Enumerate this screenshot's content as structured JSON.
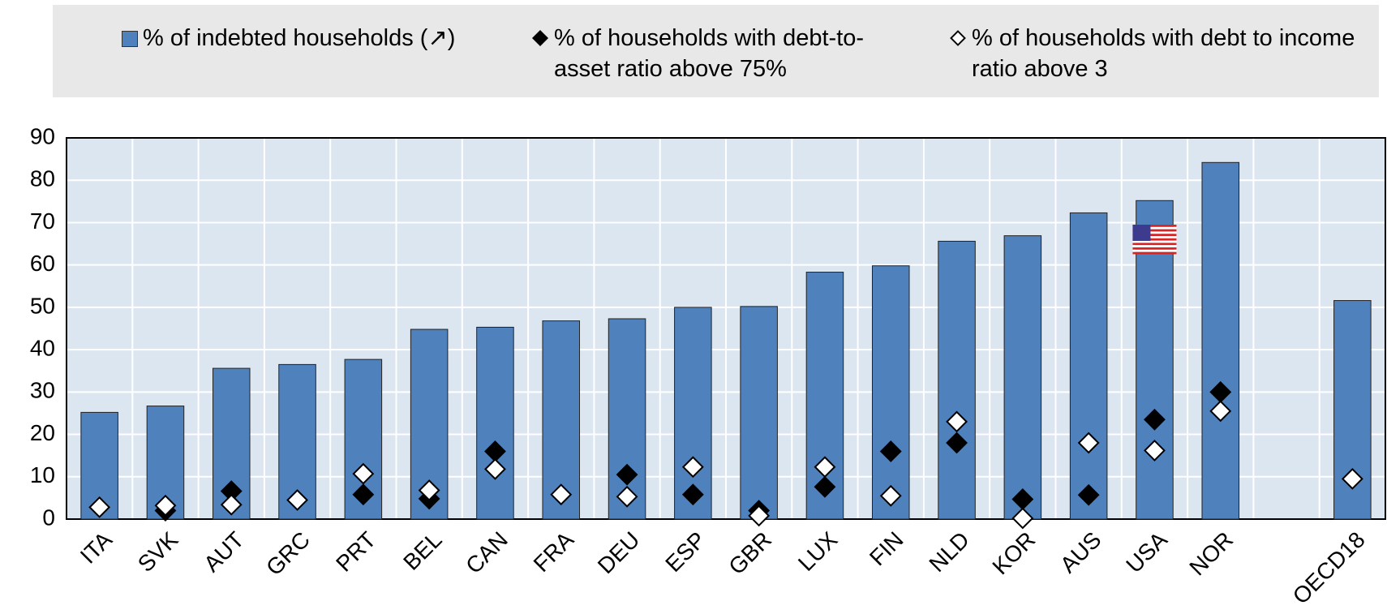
{
  "chart_data": {
    "type": "bar",
    "categories": [
      "ITA",
      "SVK",
      "AUT",
      "GRC",
      "PRT",
      "BEL",
      "CAN",
      "FRA",
      "DEU",
      "ESP",
      "GBR",
      "LUX",
      "FIN",
      "NLD",
      "KOR",
      "AUS",
      "USA",
      "NOR",
      null,
      "OECD18"
    ],
    "series": [
      {
        "name": "% of indebted households (↗)",
        "style": "bar",
        "color": "#4f81bd",
        "values": [
          25.2,
          26.7,
          35.6,
          36.5,
          37.7,
          44.8,
          45.3,
          46.8,
          47.3,
          50.0,
          50.2,
          58.3,
          59.8,
          65.6,
          66.9,
          72.3,
          75.2,
          84.2,
          null,
          51.6
        ]
      },
      {
        "name": "% of households with debt-to-asset ratio above 75%",
        "style": "diamond",
        "color": "#000000",
        "values": [
          null,
          2.0,
          6.6,
          null,
          5.8,
          4.8,
          16.0,
          null,
          10.5,
          5.8,
          2.0,
          7.6,
          16.0,
          18.0,
          4.7,
          5.7,
          23.5,
          30.0,
          null,
          null
        ]
      },
      {
        "name": "% of households with debt to income ratio above 3",
        "style": "diamond",
        "color": "#ffffff",
        "values": [
          2.8,
          3.2,
          3.4,
          4.5,
          10.7,
          6.8,
          11.8,
          5.8,
          5.3,
          12.3,
          0.8,
          12.3,
          5.5,
          23.0,
          0.2,
          18.0,
          16.2,
          25.5,
          null,
          9.5
        ]
      }
    ],
    "ylim": [
      0,
      90
    ],
    "yticks": [
      0,
      10,
      20,
      30,
      40,
      50,
      60,
      70,
      80,
      90
    ],
    "grid": true
  }
}
